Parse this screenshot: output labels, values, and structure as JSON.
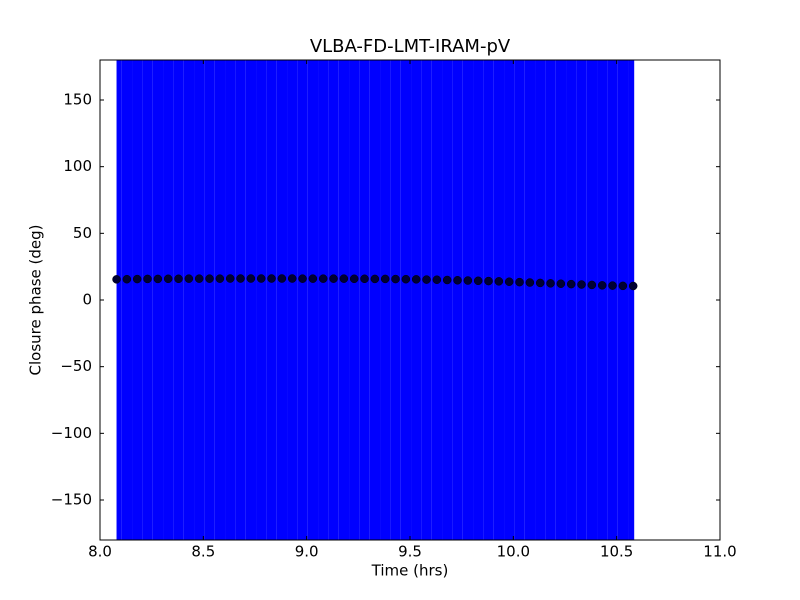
{
  "chart_data": {
    "type": "errorbar-scatter",
    "title": "VLBA-FD-LMT-IRAM-pV",
    "x_label": "Time (hrs)",
    "y_label": "Closure phase (deg)",
    "xlim": [
      8.0,
      11.0
    ],
    "xticks": [
      {
        "value": 8,
        "label": "8.0"
      },
      8.5,
      {
        "value": 9,
        "label": "9.0"
      },
      9.5,
      {
        "value": 10,
        "label": "10.0"
      },
      10.5,
      {
        "value": 11,
        "label": "11.0"
      }
    ],
    "ylim": [
      -180,
      180
    ],
    "yticks": [
      {
        "value": -150,
        "label": "−150"
      },
      {
        "value": -100,
        "label": "−100"
      },
      {
        "value": -50,
        "label": "−50"
      },
      0,
      50,
      100,
      150
    ],
    "series": [
      {
        "color": "#0000ff",
        "marker_color": "#000033",
        "error": 250,
        "x": [
          8.08,
          8.13,
          8.18,
          8.23,
          8.28,
          8.33,
          8.38,
          8.43,
          8.48,
          8.53,
          8.58,
          8.63,
          8.68,
          8.73,
          8.78,
          8.83,
          8.88,
          8.93,
          8.98,
          9.03,
          9.08,
          9.13,
          9.18,
          9.23,
          9.28,
          9.33,
          9.38,
          9.43,
          9.48,
          9.53,
          9.58,
          9.63,
          9.68,
          9.73,
          9.78,
          9.83,
          9.88,
          9.93,
          9.98,
          10.03,
          10.08,
          10.13,
          10.18,
          10.23,
          10.28,
          10.33,
          10.38,
          10.43,
          10.48,
          10.53,
          10.58
        ],
        "values": [
          15.5,
          15.6,
          15.7,
          15.8,
          15.8,
          15.9,
          15.9,
          16,
          16,
          16,
          16,
          16.1,
          16.1,
          16.1,
          16.1,
          16.1,
          16.1,
          16.1,
          16,
          16,
          16,
          16,
          16,
          15.9,
          15.9,
          15.8,
          15.8,
          15.7,
          15.6,
          15.5,
          15.3,
          15.2,
          15,
          14.8,
          14.6,
          14.4,
          14.2,
          14,
          13.7,
          13.4,
          13.1,
          12.8,
          12.5,
          12.2,
          11.9,
          11.6,
          11.3,
          11,
          10.8,
          10.6,
          10.5
        ]
      }
    ]
  }
}
